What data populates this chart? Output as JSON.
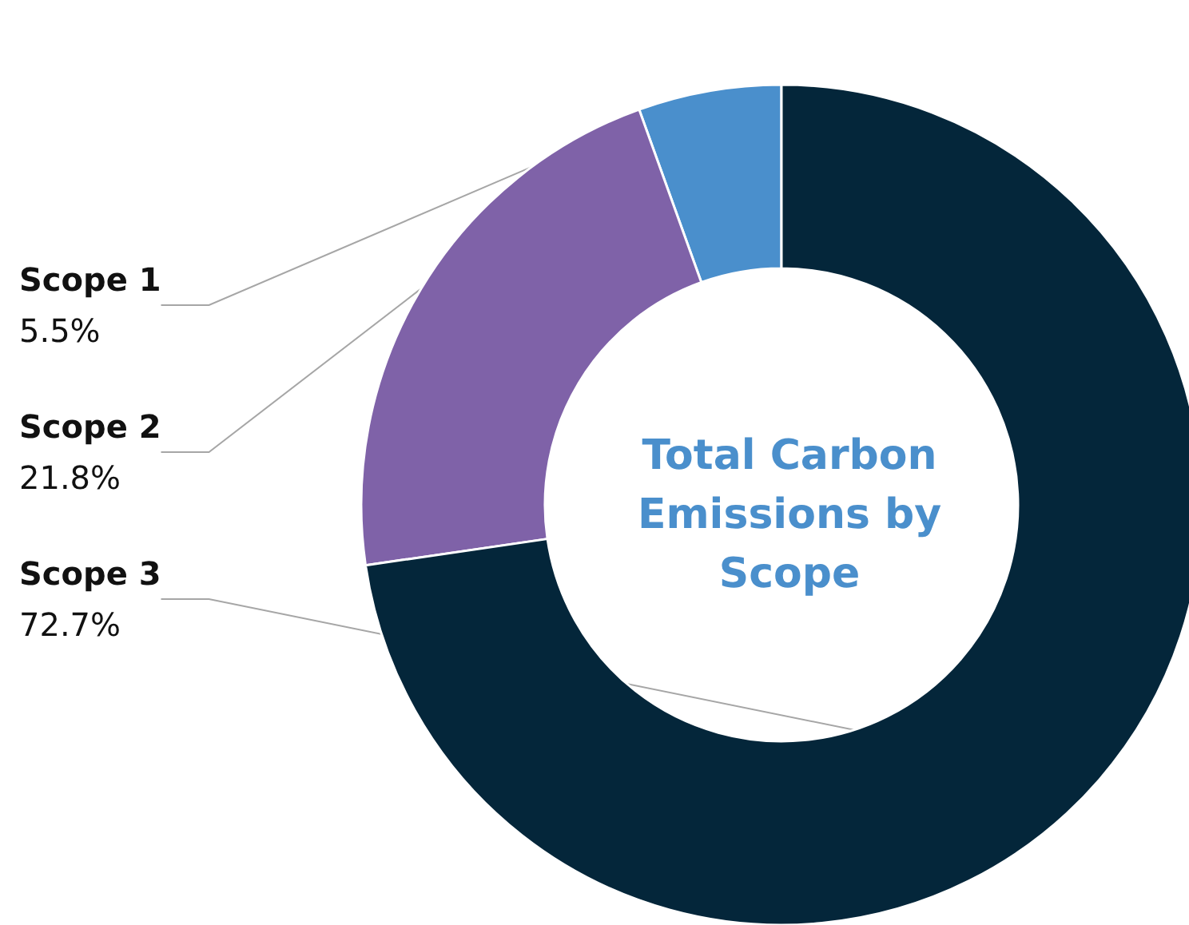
{
  "chart_data": {
    "type": "donut",
    "title": "Total Carbon Emissions by Scope",
    "categories": [
      "Scope 1",
      "Scope 2",
      "Scope 3"
    ],
    "values": [
      5.5,
      21.8,
      72.7
    ],
    "value_labels": [
      "5.5%",
      "21.8%",
      "72.7%"
    ],
    "colors": [
      "#4a8fcc",
      "#7f62a8",
      "#04263a"
    ]
  }
}
